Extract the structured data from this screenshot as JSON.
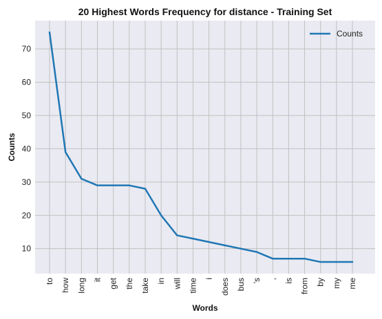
{
  "chart_data": {
    "type": "line",
    "title": "20 Highest Words Frequency for distance - Training Set",
    "xlabel": "Words",
    "ylabel": "Counts",
    "categories": [
      "to",
      "how",
      "long",
      "it",
      "get",
      "the",
      "take",
      "in",
      "will",
      "time",
      "i",
      "does",
      "bus",
      "'s",
      ",",
      "is",
      "from",
      "by",
      "my",
      "me"
    ],
    "series": [
      {
        "name": "Counts",
        "values": [
          75,
          39,
          31,
          29,
          29,
          29,
          28,
          20,
          14,
          13,
          12,
          11,
          10,
          9,
          7,
          7,
          7,
          6,
          6,
          6
        ]
      }
    ],
    "y_ticks": [
      10,
      20,
      30,
      40,
      50,
      60,
      70
    ],
    "ylim": [
      2.5,
      78.5
    ],
    "grid": true,
    "legend_position": "top-right",
    "colors": {
      "line": "#1f77b4",
      "plot_bg": "#eaeaf2",
      "grid": "#c0c0c0"
    }
  }
}
